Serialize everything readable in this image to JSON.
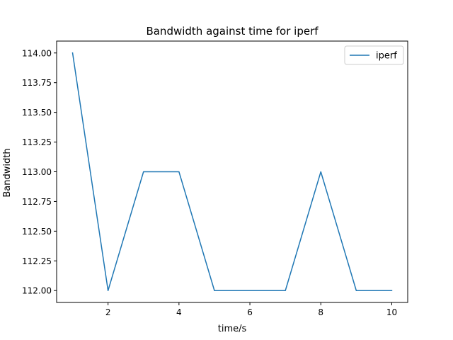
{
  "chart_data": {
    "type": "line",
    "title": "Bandwidth against time for iperf",
    "xlabel": "time/s",
    "ylabel": "Bandwidth",
    "xlim": [
      0.55,
      10.45
    ],
    "ylim": [
      111.9,
      114.1
    ],
    "xticks": [
      2,
      4,
      6,
      8,
      10
    ],
    "xtick_labels": [
      "2",
      "4",
      "6",
      "8",
      "10"
    ],
    "yticks": [
      112.0,
      112.25,
      112.5,
      112.75,
      113.0,
      113.25,
      113.5,
      113.75,
      114.0
    ],
    "ytick_labels": [
      "112.00",
      "112.25",
      "112.50",
      "112.75",
      "113.00",
      "113.25",
      "113.50",
      "113.75",
      "114.00"
    ],
    "grid": false,
    "legend": {
      "position": "top-right",
      "entries": [
        "iperf"
      ]
    },
    "series": [
      {
        "name": "iperf",
        "color": "#1f77b4",
        "x": [
          1,
          2,
          3,
          4,
          5,
          6,
          7,
          8,
          9,
          10
        ],
        "y": [
          114,
          112,
          113,
          113,
          112,
          112,
          112,
          113,
          112,
          112
        ]
      }
    ]
  }
}
